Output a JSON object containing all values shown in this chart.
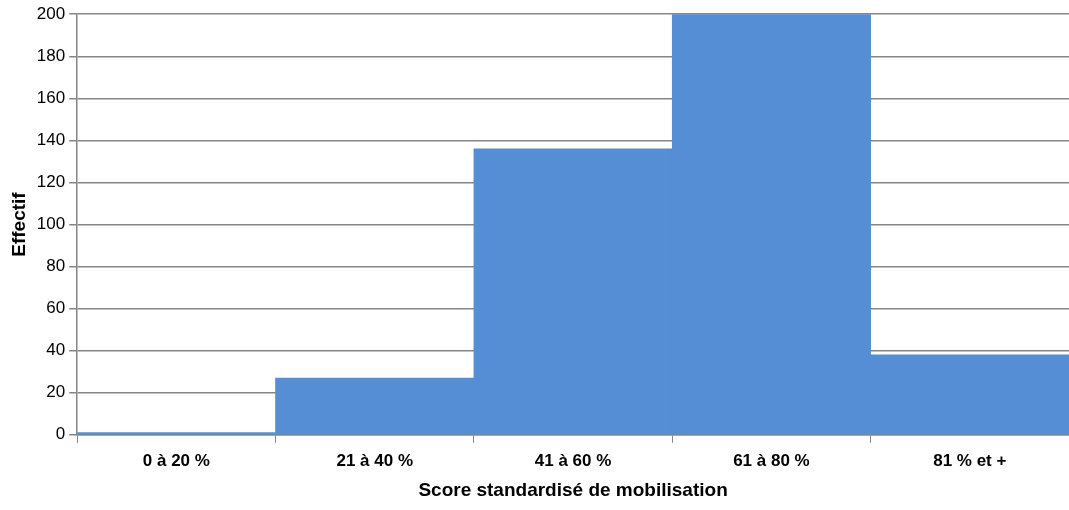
{
  "chart_data": {
    "type": "bar",
    "xlabel": "Score standardisé de mobilisation",
    "ylabel": "Effectif",
    "categories": [
      "0 à 20 %",
      "21 à 40 %",
      "41 à 60 %",
      "61 à 80 %",
      "81 % et +"
    ],
    "values": [
      1,
      27,
      136,
      200,
      38
    ],
    "color": "#558ed5",
    "ylim": [
      0,
      200
    ],
    "yticks": [
      0,
      20,
      40,
      60,
      80,
      100,
      120,
      140,
      160,
      180,
      200
    ],
    "grid": "y",
    "legend": false
  }
}
